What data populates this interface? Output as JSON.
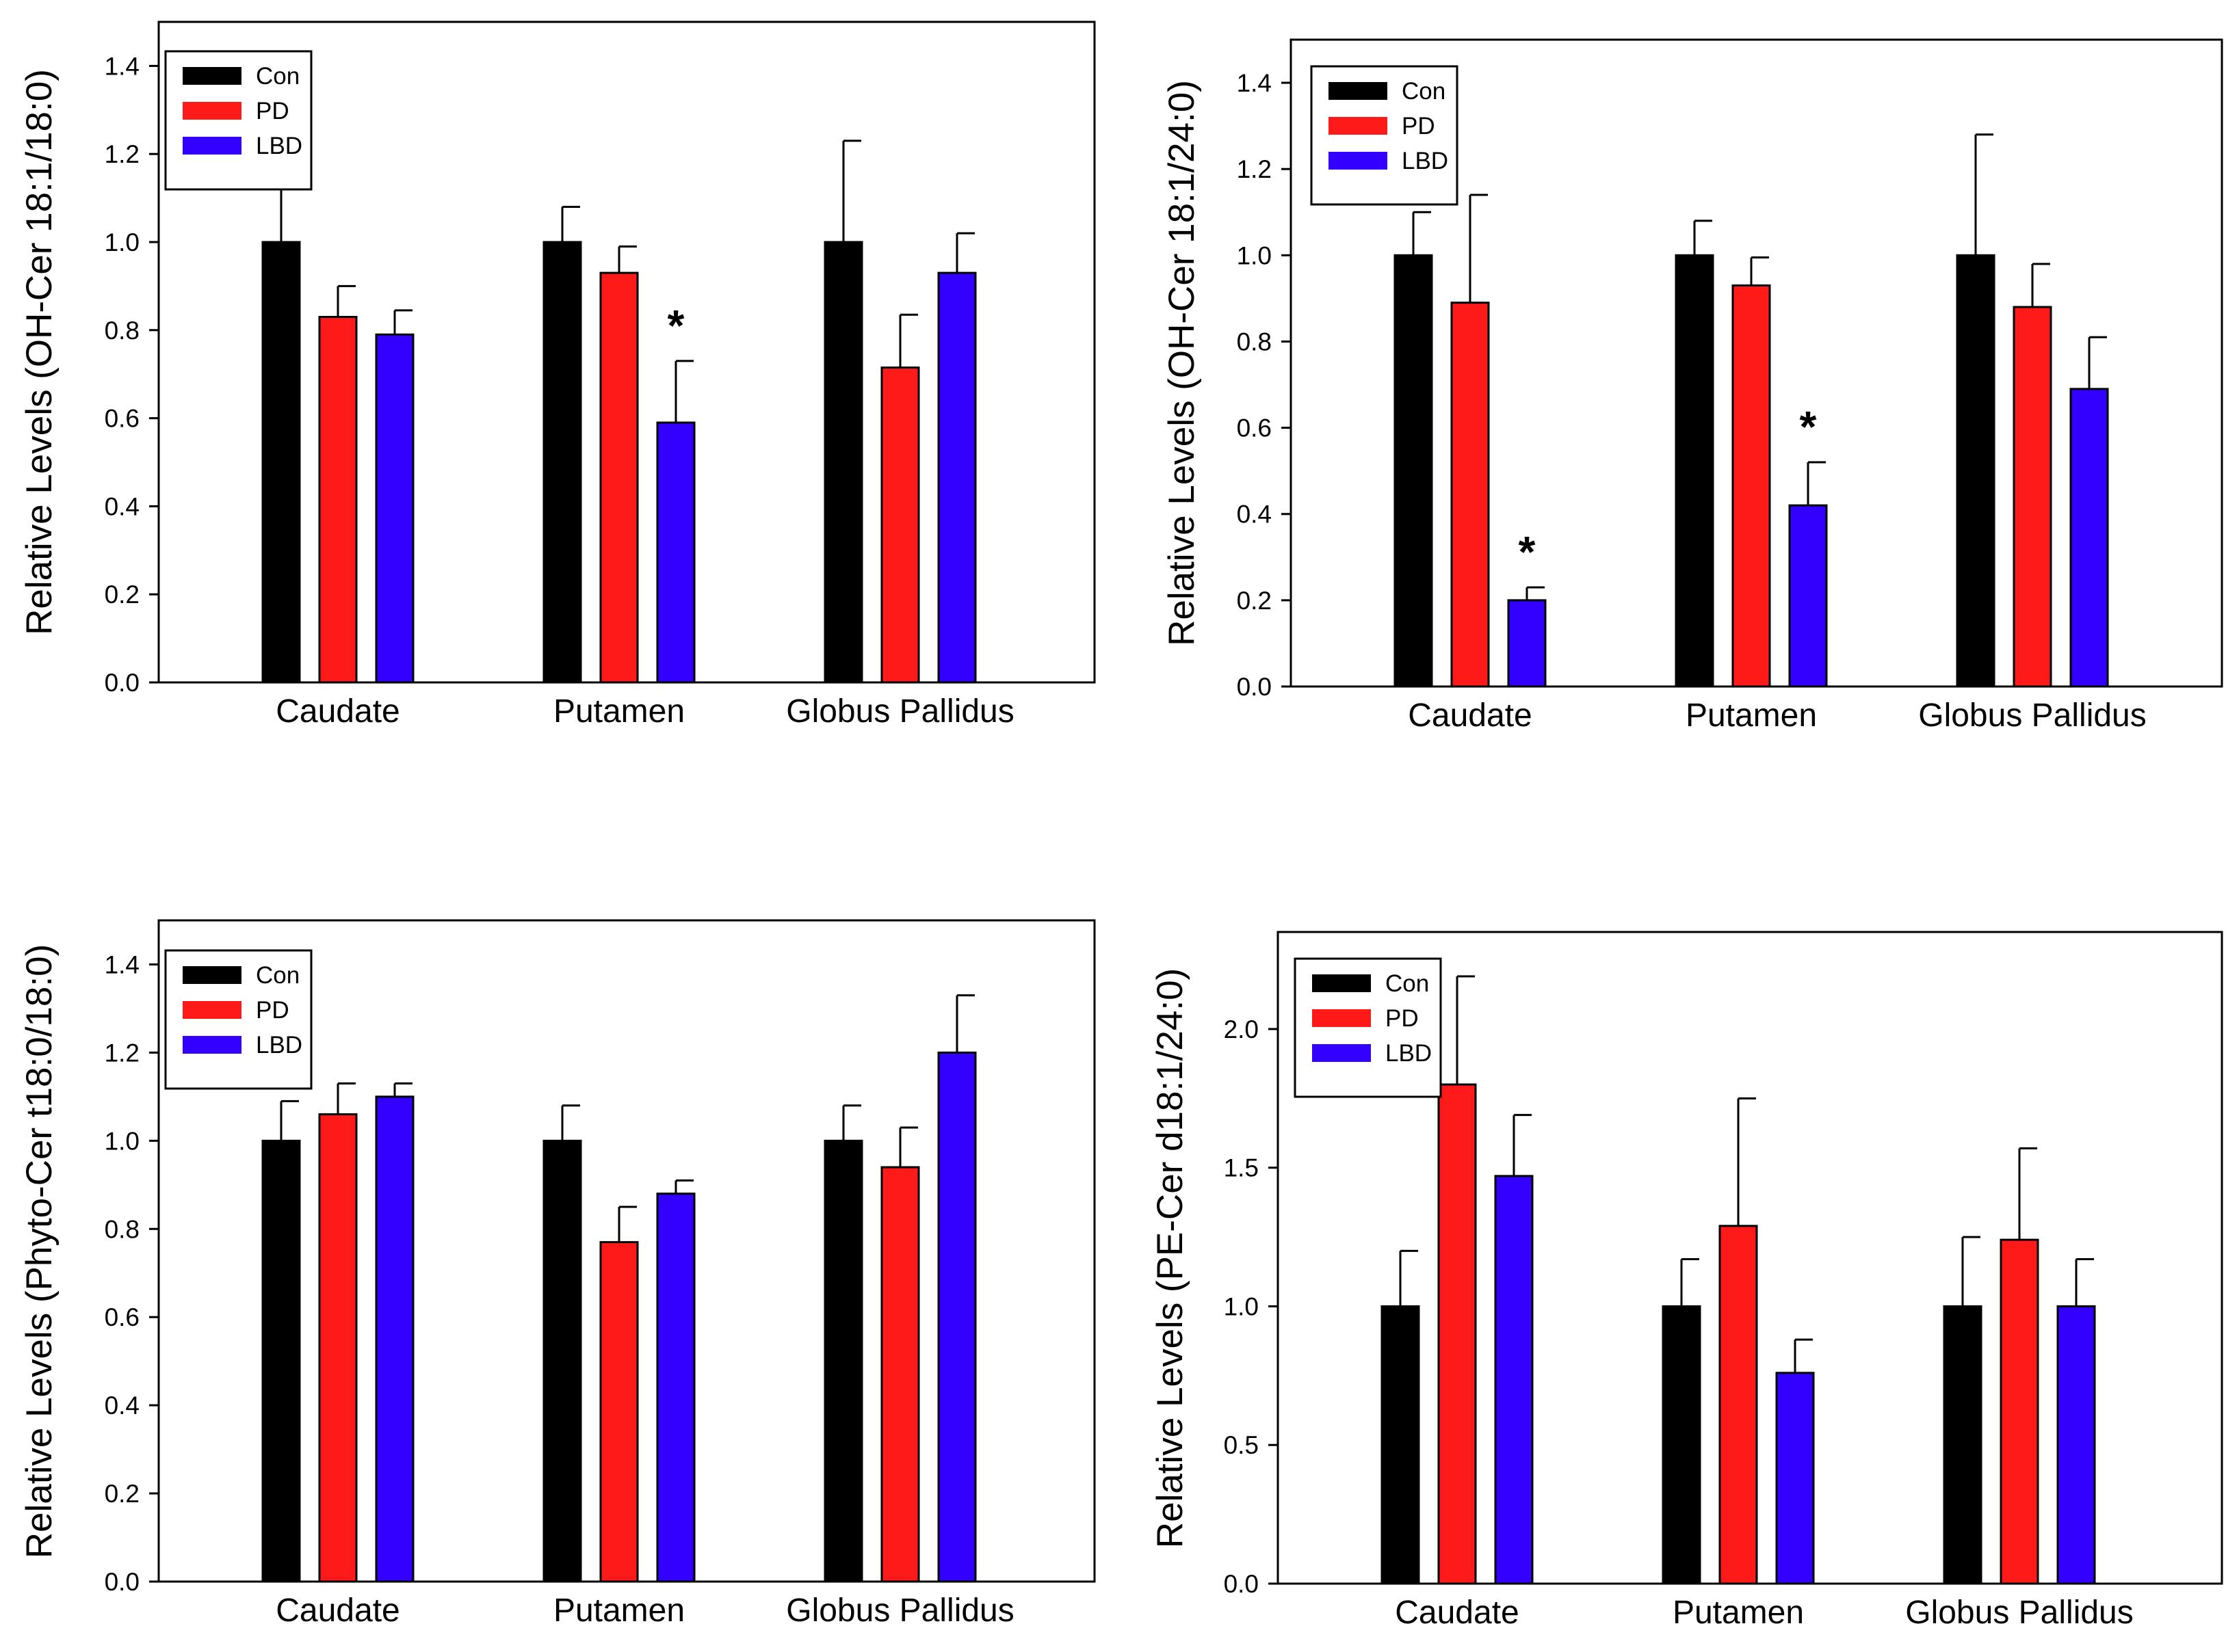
{
  "figure": {
    "colors": {
      "Con": "#000000",
      "PD": "#ff1a1a",
      "LBD": "#3300ff",
      "axis": "#000000",
      "background": "#ffffff"
    }
  },
  "chart_data": [
    {
      "type": "bar",
      "title": "",
      "xlabel": "",
      "ylabel": "Relative Levels (OH-Cer 18:1/18:0)",
      "categories": [
        "Caudate",
        "Putamen",
        "Globus Pallidus"
      ],
      "ylim": [
        0,
        1.5
      ],
      "yticks": [
        0.0,
        0.2,
        0.4,
        0.6,
        0.8,
        1.0,
        1.2,
        1.4
      ],
      "ytick_labels": [
        "0.0",
        "0.2",
        "0.4",
        "0.6",
        "0.8",
        "1.0",
        "1.2",
        "1.4"
      ],
      "legend": [
        "Con",
        "PD",
        "LBD"
      ],
      "legend_position": "top-left",
      "series": [
        {
          "name": "Con",
          "values": [
            1.0,
            1.0,
            1.0
          ],
          "errors": [
            0.19,
            0.08,
            0.23
          ]
        },
        {
          "name": "PD",
          "values": [
            0.83,
            0.93,
            0.715
          ],
          "errors": [
            0.07,
            0.06,
            0.12
          ]
        },
        {
          "name": "LBD",
          "values": [
            0.79,
            0.59,
            0.93
          ],
          "errors": [
            0.055,
            0.14,
            0.09
          ]
        }
      ],
      "annotations": [
        {
          "series": "LBD",
          "category": "Putamen",
          "text": "*"
        }
      ]
    },
    {
      "type": "bar",
      "title": "",
      "xlabel": "",
      "ylabel": "Relative Levels (OH-Cer 18:1/24:0)",
      "categories": [
        "Caudate",
        "Putamen",
        "Globus Pallidus"
      ],
      "ylim": [
        0,
        1.5
      ],
      "yticks": [
        0.0,
        0.2,
        0.4,
        0.6,
        0.8,
        1.0,
        1.2,
        1.4
      ],
      "ytick_labels": [
        "0.0",
        "0.2",
        "0.4",
        "0.6",
        "0.8",
        "1.0",
        "1.2",
        "1.4"
      ],
      "legend": [
        "Con",
        "PD",
        "LBD"
      ],
      "legend_position": "top-left",
      "series": [
        {
          "name": "Con",
          "values": [
            1.0,
            1.0,
            1.0
          ],
          "errors": [
            0.1,
            0.08,
            0.28
          ]
        },
        {
          "name": "PD",
          "values": [
            0.89,
            0.93,
            0.88
          ],
          "errors": [
            0.25,
            0.065,
            0.1
          ]
        },
        {
          "name": "LBD",
          "values": [
            0.2,
            0.42,
            0.69
          ],
          "errors": [
            0.03,
            0.1,
            0.12
          ]
        }
      ],
      "annotations": [
        {
          "series": "LBD",
          "category": "Caudate",
          "text": "*"
        },
        {
          "series": "LBD",
          "category": "Putamen",
          "text": "*"
        }
      ]
    },
    {
      "type": "bar",
      "title": "",
      "xlabel": "",
      "ylabel": "Relative Levels (Phyto-Cer t18:0/18:0)",
      "categories": [
        "Caudate",
        "Putamen",
        "Globus Pallidus"
      ],
      "ylim": [
        0,
        1.5
      ],
      "yticks": [
        0.0,
        0.2,
        0.4,
        0.6,
        0.8,
        1.0,
        1.2,
        1.4
      ],
      "ytick_labels": [
        "0.0",
        "0.2",
        "0.4",
        "0.6",
        "0.8",
        "1.0",
        "1.2",
        "1.4"
      ],
      "legend": [
        "Con",
        "PD",
        "LBD"
      ],
      "legend_position": "top-left",
      "series": [
        {
          "name": "Con",
          "values": [
            1.0,
            1.0,
            1.0
          ],
          "errors": [
            0.09,
            0.08,
            0.08
          ]
        },
        {
          "name": "PD",
          "values": [
            1.06,
            0.77,
            0.94
          ],
          "errors": [
            0.07,
            0.08,
            0.09
          ]
        },
        {
          "name": "LBD",
          "values": [
            1.1,
            0.88,
            1.2
          ],
          "errors": [
            0.03,
            0.03,
            0.13
          ]
        }
      ],
      "annotations": []
    },
    {
      "type": "bar",
      "title": "",
      "xlabel": "",
      "ylabel": "Relative Levels (PE-Cer d18:1/24:0)",
      "categories": [
        "Caudate",
        "Putamen",
        "Globus Pallidus"
      ],
      "ylim": [
        0,
        2.35
      ],
      "yticks": [
        0.0,
        0.5,
        1.0,
        1.5,
        2.0
      ],
      "ytick_labels": [
        "0.0",
        "0.5",
        "1.0",
        "1.5",
        "2.0"
      ],
      "legend": [
        "Con",
        "PD",
        "LBD"
      ],
      "legend_position": "top-left",
      "series": [
        {
          "name": "Con",
          "values": [
            1.0,
            1.0,
            1.0
          ],
          "errors": [
            0.2,
            0.17,
            0.25
          ]
        },
        {
          "name": "PD",
          "values": [
            1.8,
            1.29,
            1.24
          ],
          "errors": [
            0.39,
            0.46,
            0.33
          ]
        },
        {
          "name": "LBD",
          "values": [
            1.47,
            0.76,
            1.0
          ],
          "errors": [
            0.22,
            0.12,
            0.17
          ]
        }
      ],
      "annotations": []
    }
  ]
}
